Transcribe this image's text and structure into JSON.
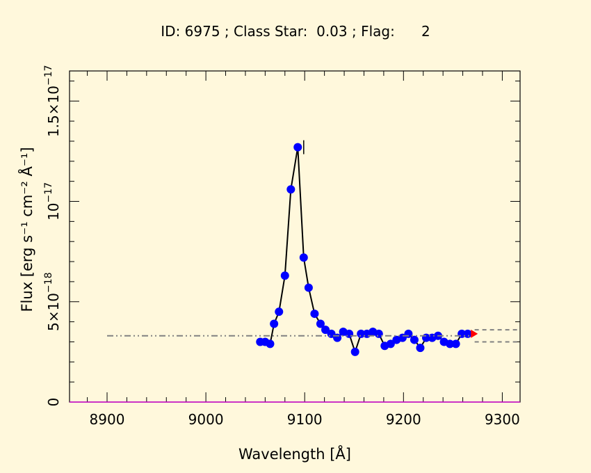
{
  "chart_data": {
    "type": "line",
    "title": "ID: 6975 ; Class Star:  0.03 ; Flag:      2",
    "xlabel": "Wavelength [Å]",
    "ylabel": "Flux [erg s⁻¹ cm⁻² Å⁻¹]",
    "xlim": [
      8862,
      9318
    ],
    "ylim": [
      0,
      1.65e-17
    ],
    "x_ticks": [
      {
        "value": 8900,
        "label": "8900"
      },
      {
        "value": 9000,
        "label": "9000"
      },
      {
        "value": 9100,
        "label": "9100"
      },
      {
        "value": 9200,
        "label": "9200"
      },
      {
        "value": 9300,
        "label": "9300"
      }
    ],
    "y_ticks": [
      {
        "value": 0,
        "mantissa": "0",
        "exponent": ""
      },
      {
        "value": 5e-18,
        "mantissa": "5×10",
        "exponent": "−18"
      },
      {
        "value": 1e-17,
        "mantissa": "10",
        "exponent": "−17"
      },
      {
        "value": 1.5e-17,
        "mantissa": "1.5×10",
        "exponent": "−17"
      }
    ],
    "series": [
      {
        "style": "line-markers",
        "color": "#0000ff",
        "line_color": "#000000",
        "x": [
          9055,
          9060,
          9065,
          9069,
          9074,
          9080,
          9086,
          9093,
          9099,
          9104,
          9110,
          9116,
          9121,
          9127,
          9133,
          9139,
          9145,
          9151,
          9157,
          9163,
          9169,
          9175,
          9181,
          9187,
          9193,
          9199,
          9205,
          9211,
          9217,
          9223,
          9229,
          9235,
          9241,
          9247,
          9253,
          9259,
          9265
        ],
        "y": [
          3e-18,
          3e-18,
          2.9e-18,
          3.9e-18,
          4.5e-18,
          6.3e-18,
          1.06e-17,
          1.27e-17,
          7.2e-18,
          5.7e-18,
          4.4e-18,
          3.9e-18,
          3.6e-18,
          3.4e-18,
          3.2e-18,
          3.5e-18,
          3.4e-18,
          2.5e-18,
          3.4e-18,
          3.4e-18,
          3.5e-18,
          3.4e-18,
          2.8e-18,
          2.9e-18,
          3.1e-18,
          3.2e-18,
          3.4e-18,
          3.1e-18,
          2.7e-18,
          3.2e-18,
          3.2e-18,
          3.3e-18,
          3e-18,
          2.9e-18,
          2.9e-18,
          3.4e-18,
          3.4e-18
        ]
      },
      {
        "style": "dash-dot",
        "color": "#808080",
        "x": [
          8900,
          9270
        ],
        "y": [
          3.3e-18,
          3.3e-18
        ]
      },
      {
        "style": "dash",
        "color": "#808080",
        "x": [
          9272,
          9318
        ],
        "y": [
          3.6e-18,
          3.6e-18
        ]
      },
      {
        "style": "dash",
        "color": "#808080",
        "x": [
          9272,
          9318
        ],
        "y": [
          3e-18,
          3e-18
        ]
      },
      {
        "style": "marker",
        "color": "#ff0000",
        "x": [
          9271
        ],
        "y": [
          3.4e-18
        ]
      }
    ],
    "grid": false,
    "legend": "none",
    "colors": {
      "background": "#fff8dc",
      "frame": "#000000",
      "baseline": "#cc00cc"
    }
  }
}
